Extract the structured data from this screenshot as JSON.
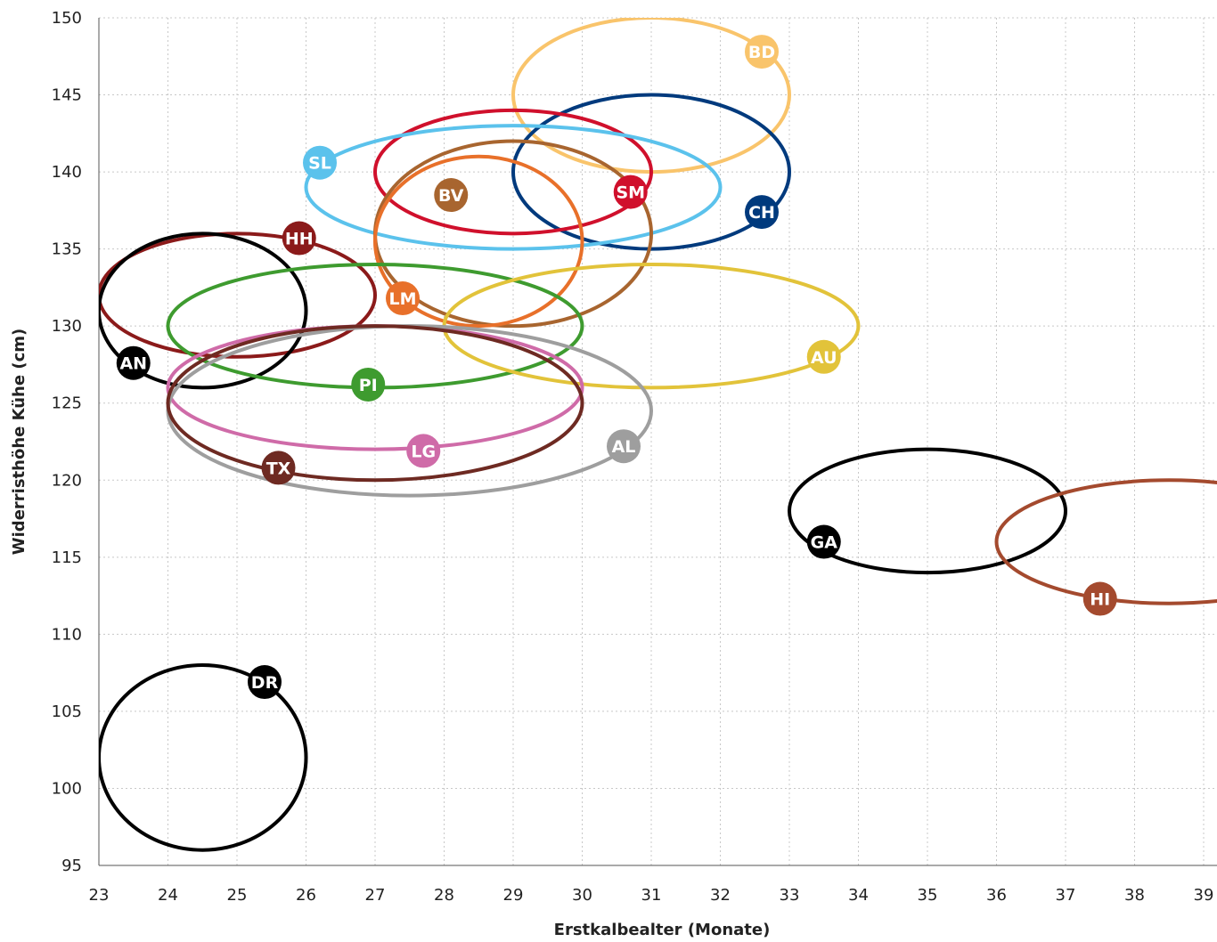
{
  "chart_data": {
    "type": "scatter",
    "title": "",
    "xlabel": "Erstkalbealter (Monate)",
    "ylabel": "Widerristhöhe Kühe (cm)",
    "xlim": [
      23,
      39.3
    ],
    "ylim": [
      95,
      150
    ],
    "xticks": [
      23,
      24,
      25,
      26,
      27,
      28,
      29,
      30,
      31,
      32,
      33,
      34,
      35,
      36,
      37,
      38,
      39
    ],
    "yticks": [
      95,
      100,
      105,
      110,
      115,
      120,
      125,
      130,
      135,
      140,
      145,
      150
    ],
    "grid": true,
    "legend": "none",
    "series": [
      {
        "name": "BD",
        "color": "#F9C46B",
        "x_range": [
          29,
          33
        ],
        "y_range": [
          140,
          150
        ],
        "label_at": [
          32.6,
          147.8
        ]
      },
      {
        "name": "CH",
        "color": "#003A7D",
        "x_range": [
          29,
          33
        ],
        "y_range": [
          135,
          145
        ],
        "label_at": [
          32.6,
          137.4
        ]
      },
      {
        "name": "SM",
        "color": "#D0102C",
        "x_range": [
          27,
          31
        ],
        "y_range": [
          136,
          144
        ],
        "label_at": [
          30.7,
          138.7
        ]
      },
      {
        "name": "SL",
        "color": "#5BC2EC",
        "x_range": [
          26,
          32
        ],
        "y_range": [
          135,
          143
        ],
        "label_at": [
          26.2,
          140.6
        ]
      },
      {
        "name": "BV",
        "color": "#A8652F",
        "x_range": [
          27,
          31
        ],
        "y_range": [
          130,
          142
        ],
        "label_at": [
          28.1,
          138.5
        ]
      },
      {
        "name": "LM",
        "color": "#E8702A",
        "x_range": [
          27,
          30
        ],
        "y_range": [
          130,
          141
        ],
        "label_at": [
          27.4,
          131.8
        ]
      },
      {
        "name": "HH",
        "color": "#8B1A1A",
        "x_range": [
          23,
          27
        ],
        "y_range": [
          128,
          136
        ],
        "label_at": [
          25.9,
          135.7
        ]
      },
      {
        "name": "AN",
        "color": "#000000",
        "x_range": [
          23,
          26
        ],
        "y_range": [
          126,
          136
        ],
        "label_at": [
          23.5,
          127.6
        ]
      },
      {
        "name": "PI",
        "color": "#3E9B2F",
        "x_range": [
          24,
          30
        ],
        "y_range": [
          126,
          134
        ],
        "label_at": [
          26.9,
          126.2
        ]
      },
      {
        "name": "AU",
        "color": "#E2C33A",
        "x_range": [
          28,
          34
        ],
        "y_range": [
          126,
          134
        ],
        "label_at": [
          33.5,
          128.0
        ]
      },
      {
        "name": "LG",
        "color": "#CF6BA8",
        "x_range": [
          24,
          30
        ],
        "y_range": [
          122,
          130
        ],
        "label_at": [
          27.7,
          121.9
        ]
      },
      {
        "name": "AL",
        "color": "#9E9E9E",
        "x_range": [
          24,
          31
        ],
        "y_range": [
          119,
          130
        ],
        "label_at": [
          30.6,
          122.2
        ]
      },
      {
        "name": "TX",
        "color": "#6E2A22",
        "x_range": [
          24,
          30
        ],
        "y_range": [
          120,
          130
        ],
        "label_at": [
          25.6,
          120.8
        ]
      },
      {
        "name": "GA",
        "color": "#000000",
        "x_range": [
          33,
          37
        ],
        "y_range": [
          114,
          122
        ],
        "label_at": [
          33.5,
          116.0
        ]
      },
      {
        "name": "HI",
        "color": "#A44A2E",
        "x_range": [
          36,
          41
        ],
        "y_range": [
          112,
          120
        ],
        "label_at": [
          37.5,
          112.3
        ]
      },
      {
        "name": "DR",
        "color": "#000000",
        "x_range": [
          23,
          26
        ],
        "y_range": [
          96,
          108
        ],
        "label_at": [
          25.4,
          106.9
        ]
      }
    ]
  }
}
